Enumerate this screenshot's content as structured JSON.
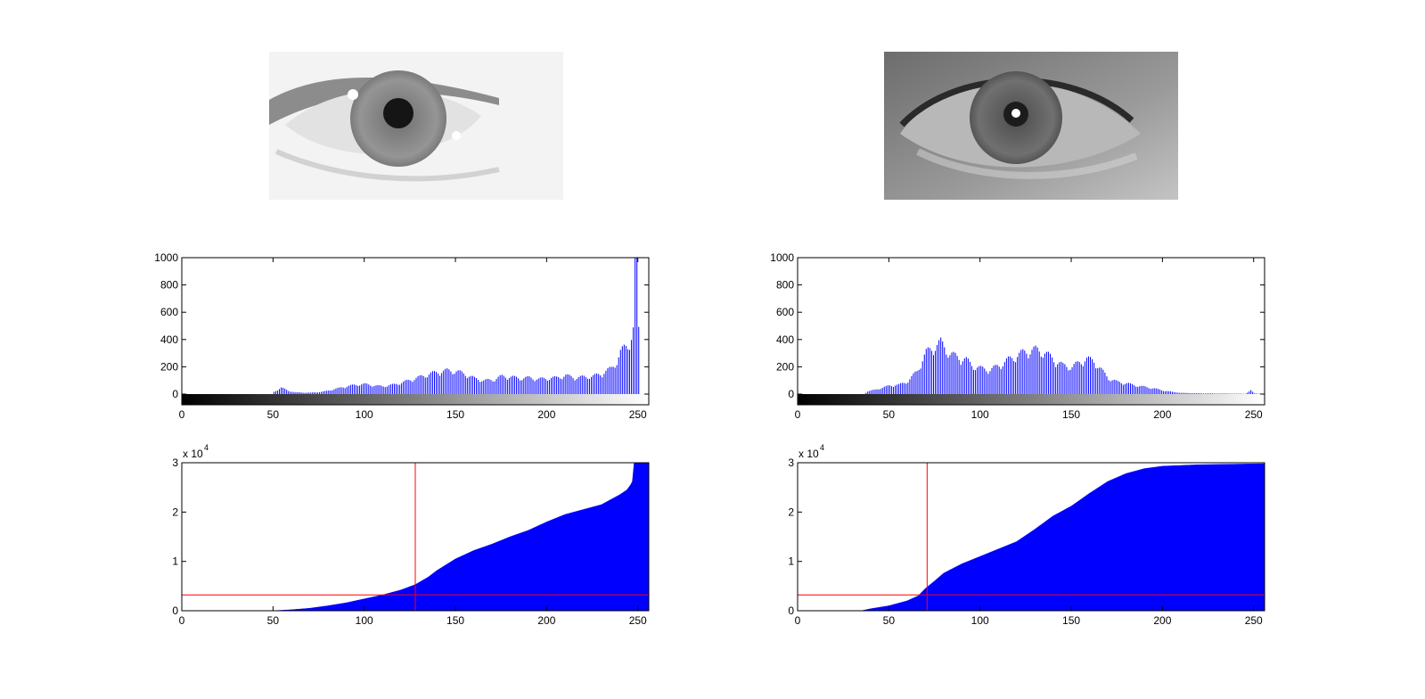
{
  "chart_data": [
    {
      "panel": "left",
      "image": {
        "kind": "eye-photo",
        "tone": "overexposed-light",
        "bg": "#f1f1f1",
        "iris": "#8a8a8a",
        "pupil": "#1a1a1a"
      },
      "histogram": {
        "type": "bar",
        "color": "#0000ff",
        "xlim": [
          0,
          256
        ],
        "ylim": [
          0,
          1000
        ],
        "xticks": [
          "0",
          "50",
          "100",
          "150",
          "200",
          "250"
        ],
        "yticks": [
          "0",
          "200",
          "400",
          "600",
          "800",
          "1000"
        ],
        "profile": [
          [
            0,
            0
          ],
          [
            49,
            0
          ],
          [
            50,
            15
          ],
          [
            52,
            30
          ],
          [
            54,
            45
          ],
          [
            56,
            35
          ],
          [
            58,
            22
          ],
          [
            62,
            12
          ],
          [
            70,
            10
          ],
          [
            76,
            15
          ],
          [
            80,
            25
          ],
          [
            85,
            40
          ],
          [
            90,
            55
          ],
          [
            95,
            65
          ],
          [
            100,
            70
          ],
          [
            105,
            60
          ],
          [
            110,
            55
          ],
          [
            115,
            65
          ],
          [
            120,
            80
          ],
          [
            125,
            100
          ],
          [
            130,
            120
          ],
          [
            135,
            140
          ],
          [
            140,
            155
          ],
          [
            145,
            165
          ],
          [
            150,
            160
          ],
          [
            155,
            140
          ],
          [
            160,
            110
          ],
          [
            165,
            95
          ],
          [
            170,
            100
          ],
          [
            175,
            125
          ],
          [
            180,
            120
          ],
          [
            185,
            110
          ],
          [
            190,
            115
          ],
          [
            195,
            105
          ],
          [
            200,
            110
          ],
          [
            205,
            115
          ],
          [
            210,
            130
          ],
          [
            215,
            115
          ],
          [
            220,
            120
          ],
          [
            225,
            125
          ],
          [
            230,
            145
          ],
          [
            235,
            180
          ],
          [
            238,
            230
          ],
          [
            240,
            290
          ],
          [
            242,
            320
          ],
          [
            244,
            345
          ],
          [
            246,
            400
          ],
          [
            247,
            450
          ],
          [
            248,
            1000
          ],
          [
            249,
            1000
          ],
          [
            250,
            450
          ],
          [
            251,
            0
          ],
          [
            255,
            0
          ]
        ]
      },
      "cdf": {
        "type": "area",
        "color": "#0000ff",
        "xlim": [
          0,
          256
        ],
        "ylim": [
          0,
          3
        ],
        "exponent_label": "x 10",
        "exponent": "4",
        "xticks": [
          "0",
          "50",
          "100",
          "150",
          "200",
          "250"
        ],
        "yticks": [
          "0",
          "1",
          "2",
          "3"
        ],
        "profile": [
          [
            0,
            0
          ],
          [
            50,
            0
          ],
          [
            60,
            0.02
          ],
          [
            70,
            0.05
          ],
          [
            80,
            0.1
          ],
          [
            90,
            0.16
          ],
          [
            100,
            0.24
          ],
          [
            110,
            0.32
          ],
          [
            120,
            0.42
          ],
          [
            128,
            0.53
          ],
          [
            135,
            0.68
          ],
          [
            140,
            0.82
          ],
          [
            150,
            1.05
          ],
          [
            160,
            1.22
          ],
          [
            170,
            1.35
          ],
          [
            180,
            1.5
          ],
          [
            190,
            1.63
          ],
          [
            200,
            1.8
          ],
          [
            210,
            1.95
          ],
          [
            220,
            2.05
          ],
          [
            230,
            2.15
          ],
          [
            235,
            2.25
          ],
          [
            240,
            2.35
          ],
          [
            244,
            2.45
          ],
          [
            246,
            2.55
          ],
          [
            247,
            2.62
          ],
          [
            248,
            3.2
          ],
          [
            249,
            3.22
          ],
          [
            250,
            3.26
          ],
          [
            255,
            3.26
          ]
        ],
        "vline_x": 128,
        "hline_y": 0.32,
        "line_color": "#ff0000"
      }
    },
    {
      "panel": "right",
      "image": {
        "kind": "eye-photo",
        "tone": "normal",
        "bg": "#8c8c8c",
        "iris": "#666666",
        "pupil": "#222222"
      },
      "histogram": {
        "type": "bar",
        "color": "#0000ff",
        "xlim": [
          0,
          256
        ],
        "ylim": [
          0,
          1000
        ],
        "xticks": [
          "0",
          "50",
          "100",
          "150",
          "200",
          "250"
        ],
        "yticks": [
          "0",
          "200",
          "400",
          "600",
          "800",
          "1000"
        ],
        "profile": [
          [
            0,
            0
          ],
          [
            36,
            0
          ],
          [
            38,
            20
          ],
          [
            42,
            30
          ],
          [
            46,
            45
          ],
          [
            50,
            60
          ],
          [
            55,
            65
          ],
          [
            60,
            90
          ],
          [
            65,
            160
          ],
          [
            68,
            240
          ],
          [
            70,
            290
          ],
          [
            73,
            320
          ],
          [
            76,
            340
          ],
          [
            78,
            360
          ],
          [
            80,
            330
          ],
          [
            83,
            280
          ],
          [
            87,
            260
          ],
          [
            92,
            240
          ],
          [
            95,
            200
          ],
          [
            100,
            180
          ],
          [
            105,
            170
          ],
          [
            110,
            200
          ],
          [
            115,
            240
          ],
          [
            120,
            270
          ],
          [
            125,
            300
          ],
          [
            130,
            310
          ],
          [
            135,
            290
          ],
          [
            140,
            240
          ],
          [
            145,
            200
          ],
          [
            150,
            190
          ],
          [
            155,
            230
          ],
          [
            158,
            245
          ],
          [
            162,
            230
          ],
          [
            166,
            170
          ],
          [
            170,
            110
          ],
          [
            175,
            85
          ],
          [
            180,
            75
          ],
          [
            185,
            60
          ],
          [
            190,
            50
          ],
          [
            195,
            40
          ],
          [
            200,
            25
          ],
          [
            205,
            15
          ],
          [
            210,
            8
          ],
          [
            220,
            5
          ],
          [
            245,
            2
          ],
          [
            248,
            25
          ],
          [
            250,
            5
          ],
          [
            255,
            0
          ]
        ]
      },
      "cdf": {
        "type": "area",
        "color": "#0000ff",
        "xlim": [
          0,
          256
        ],
        "ylim": [
          0,
          3
        ],
        "exponent_label": "x 10",
        "exponent": "4",
        "xticks": [
          "0",
          "50",
          "100",
          "150",
          "200",
          "250"
        ],
        "yticks": [
          "0",
          "1",
          "2",
          "3"
        ],
        "profile": [
          [
            0,
            0
          ],
          [
            35,
            0
          ],
          [
            40,
            0.04
          ],
          [
            50,
            0.1
          ],
          [
            60,
            0.2
          ],
          [
            66,
            0.3
          ],
          [
            70,
            0.45
          ],
          [
            75,
            0.6
          ],
          [
            80,
            0.76
          ],
          [
            90,
            0.95
          ],
          [
            100,
            1.1
          ],
          [
            110,
            1.25
          ],
          [
            120,
            1.4
          ],
          [
            130,
            1.65
          ],
          [
            140,
            1.92
          ],
          [
            150,
            2.12
          ],
          [
            160,
            2.38
          ],
          [
            170,
            2.62
          ],
          [
            180,
            2.78
          ],
          [
            190,
            2.88
          ],
          [
            200,
            2.93
          ],
          [
            220,
            2.96
          ],
          [
            255,
            2.98
          ]
        ],
        "vline_x": 71,
        "hline_y": 0.32,
        "line_color": "#ff0000"
      }
    }
  ]
}
